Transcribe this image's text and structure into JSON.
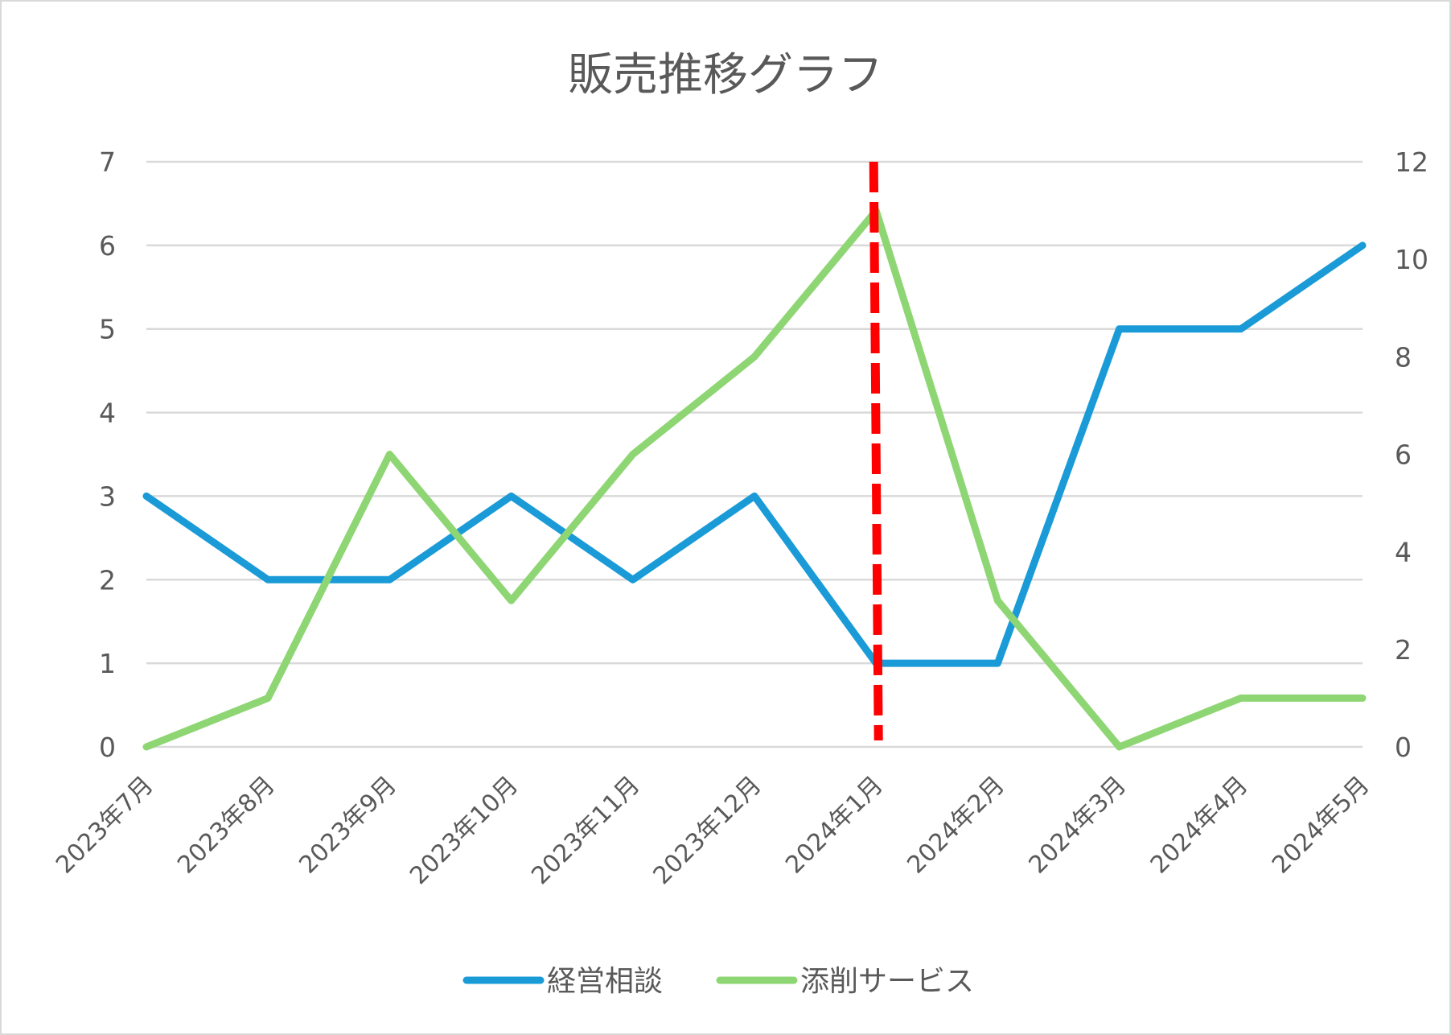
{
  "chart_data": {
    "type": "line",
    "title": "販売推移グラフ",
    "categories": [
      "2023年7月",
      "2023年8月",
      "2023年9月",
      "2023年10月",
      "2023年11月",
      "2023年12月",
      "2024年1月",
      "2024年2月",
      "2024年3月",
      "2024年4月",
      "2024年5月"
    ],
    "series": [
      {
        "name": "経営相談",
        "axis": "left",
        "color": "#1A9BD7",
        "values": [
          3,
          2,
          2,
          3,
          2,
          3,
          1,
          1,
          5,
          5,
          6
        ]
      },
      {
        "name": "添削サービス",
        "axis": "right",
        "color": "#8ED673",
        "values": [
          0,
          1,
          6,
          3,
          6,
          8,
          11,
          3,
          0,
          1,
          1
        ]
      }
    ],
    "y_left": {
      "min": 0,
      "max": 7,
      "ticks": [
        "0",
        "1",
        "2",
        "3",
        "4",
        "5",
        "6",
        "7"
      ]
    },
    "y_right": {
      "min": 0,
      "max": 12,
      "ticks": [
        "0",
        "2",
        "4",
        "6",
        "8",
        "10",
        "12"
      ]
    },
    "marker_line": {
      "category": "2024年1月",
      "style": "dashed",
      "color": "#FF0000"
    },
    "grid": true,
    "legend": "bottom"
  }
}
